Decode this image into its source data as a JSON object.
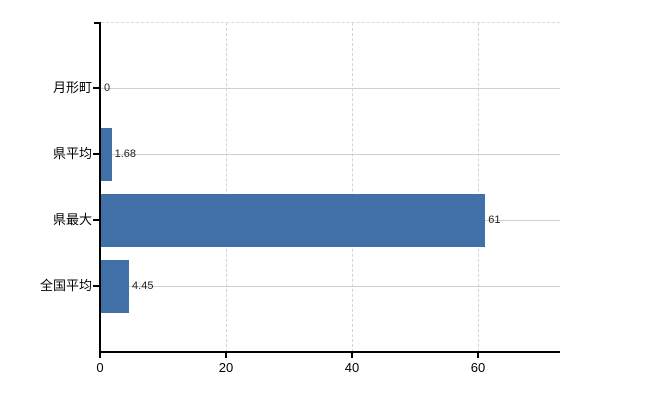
{
  "chart_data": {
    "type": "bar",
    "orientation": "horizontal",
    "categories": [
      "月形町",
      "県平均",
      "県最大",
      "全国平均"
    ],
    "values": [
      0,
      1.68,
      61,
      4.45
    ],
    "value_labels": [
      "0",
      "1.68",
      "61",
      "4.45"
    ],
    "x_ticks": [
      0,
      20,
      40,
      60
    ],
    "x_tick_labels": [
      "0",
      "20",
      "40",
      "60"
    ],
    "xlim": [
      0,
      73
    ],
    "grid": true,
    "legend": false,
    "title": "",
    "colors": {
      "bar": "#4170a8",
      "h_gridline": "#ccd3cc",
      "v_gridline": "#d2d2d7",
      "top_border": "#d9d9de",
      "axis": "#000000",
      "category_label": "#000000",
      "value_label": "#222222",
      "background": "#ffffff"
    }
  }
}
